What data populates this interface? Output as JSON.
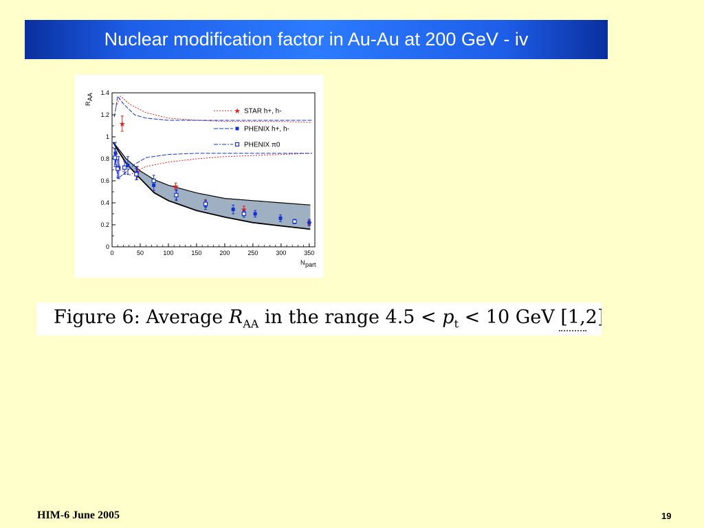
{
  "slide": {
    "title": "Nuclear modification factor in Au-Au at 200 GeV - iv",
    "caption": "Figure 6:  Average R_AA in the range 4.5 < p_t < 10 GeV [1,2]",
    "footer_left": "HIM-6 June 2005",
    "page_number": "19"
  },
  "colors": {
    "title_bar": "#2c7bff",
    "background": "#ffffcc",
    "star": "#e0201a",
    "phenix": "#1030d0",
    "band_fill": "#9eb0c2"
  },
  "chart_data": {
    "type": "scatter",
    "xlabel": "N_part",
    "ylabel": "R_AA",
    "xlim": [
      0,
      360
    ],
    "ylim": [
      0,
      1.4
    ],
    "x_ticks": [
      "0",
      "50",
      "100",
      "150",
      "200",
      "250",
      "300",
      "350"
    ],
    "y_ticks": [
      "0",
      "0.2",
      "0.4",
      "0.6",
      "0.8",
      "1",
      "1.2",
      "1.4"
    ],
    "legend_position": "top-right",
    "series": [
      {
        "name": "STAR  h+, h-",
        "marker": "star",
        "points": [
          [
            18,
            1.12
          ],
          [
            45,
            0.68
          ],
          [
            113,
            0.55
          ],
          [
            166,
            0.4
          ],
          [
            234,
            0.34
          ],
          [
            350,
            0.22
          ]
        ],
        "errors": [
          0.07,
          0.05,
          0.03,
          0.03,
          0.03,
          0.02
        ]
      },
      {
        "name": "PHENIX  h+, h-",
        "marker": "filled-square",
        "points": [
          [
            6,
            0.85
          ],
          [
            12,
            0.72
          ],
          [
            28,
            0.74
          ],
          [
            44,
            0.67
          ],
          [
            74,
            0.56
          ],
          [
            114,
            0.47
          ],
          [
            166,
            0.38
          ],
          [
            215,
            0.34
          ],
          [
            254,
            0.3
          ],
          [
            299,
            0.26
          ],
          [
            350,
            0.22
          ]
        ],
        "errors": [
          0.1,
          0.1,
          0.08,
          0.06,
          0.05,
          0.05,
          0.04,
          0.04,
          0.03,
          0.03,
          0.03
        ]
      },
      {
        "name": "PHENIX  π0",
        "marker": "open-square",
        "points": [
          [
            5,
            0.81
          ],
          [
            10,
            0.71
          ],
          [
            22,
            0.72
          ],
          [
            43,
            0.66
          ],
          [
            74,
            0.6
          ],
          [
            114,
            0.47
          ],
          [
            166,
            0.39
          ],
          [
            234,
            0.3
          ],
          [
            324,
            0.23
          ]
        ],
        "errors": [
          0.08,
          0.08,
          0.06,
          0.05,
          0.05,
          0.04,
          0.03,
          0.03,
          0.02
        ]
      }
    ],
    "band": {
      "upper": [
        [
          2,
          0.95
        ],
        [
          10,
          0.9
        ],
        [
          25,
          0.8
        ],
        [
          50,
          0.69
        ],
        [
          75,
          0.61
        ],
        [
          100,
          0.56
        ],
        [
          150,
          0.49
        ],
        [
          200,
          0.44
        ],
        [
          250,
          0.42
        ],
        [
          300,
          0.4
        ],
        [
          352,
          0.38
        ]
      ],
      "lower": [
        [
          2,
          0.95
        ],
        [
          10,
          0.88
        ],
        [
          25,
          0.76
        ],
        [
          50,
          0.62
        ],
        [
          75,
          0.49
        ],
        [
          100,
          0.42
        ],
        [
          150,
          0.33
        ],
        [
          200,
          0.27
        ],
        [
          250,
          0.22
        ],
        [
          300,
          0.19
        ],
        [
          352,
          0.16
        ]
      ]
    },
    "curves": [
      {
        "style": "star-upper",
        "points": [
          [
            7,
            1.27
          ],
          [
            15,
            1.37
          ],
          [
            30,
            1.3
          ],
          [
            60,
            1.22
          ],
          [
            100,
            1.17
          ],
          [
            150,
            1.15
          ],
          [
            200,
            1.14
          ],
          [
            250,
            1.14
          ],
          [
            300,
            1.14
          ],
          [
            355,
            1.13
          ]
        ]
      },
      {
        "style": "phenix-upper",
        "points": [
          [
            4,
            1.18
          ],
          [
            10,
            1.37
          ],
          [
            20,
            1.3
          ],
          [
            40,
            1.2
          ],
          [
            60,
            1.17
          ],
          [
            100,
            1.15
          ],
          [
            150,
            1.15
          ],
          [
            200,
            1.15
          ],
          [
            250,
            1.15
          ],
          [
            300,
            1.15
          ],
          [
            355,
            1.15
          ]
        ]
      },
      {
        "style": "star-lower",
        "points": [
          [
            7,
            0.9
          ],
          [
            15,
            0.7
          ],
          [
            30,
            0.65
          ],
          [
            60,
            0.73
          ],
          [
            100,
            0.77
          ],
          [
            150,
            0.8
          ],
          [
            200,
            0.82
          ],
          [
            250,
            0.83
          ],
          [
            300,
            0.84
          ],
          [
            355,
            0.85
          ]
        ]
      },
      {
        "style": "phenix-lower",
        "points": [
          [
            4,
            0.95
          ],
          [
            10,
            0.62
          ],
          [
            20,
            0.66
          ],
          [
            40,
            0.75
          ],
          [
            60,
            0.81
          ],
          [
            100,
            0.84
          ],
          [
            150,
            0.85
          ],
          [
            200,
            0.85
          ],
          [
            250,
            0.85
          ],
          [
            300,
            0.85
          ],
          [
            355,
            0.85
          ]
        ]
      }
    ]
  }
}
